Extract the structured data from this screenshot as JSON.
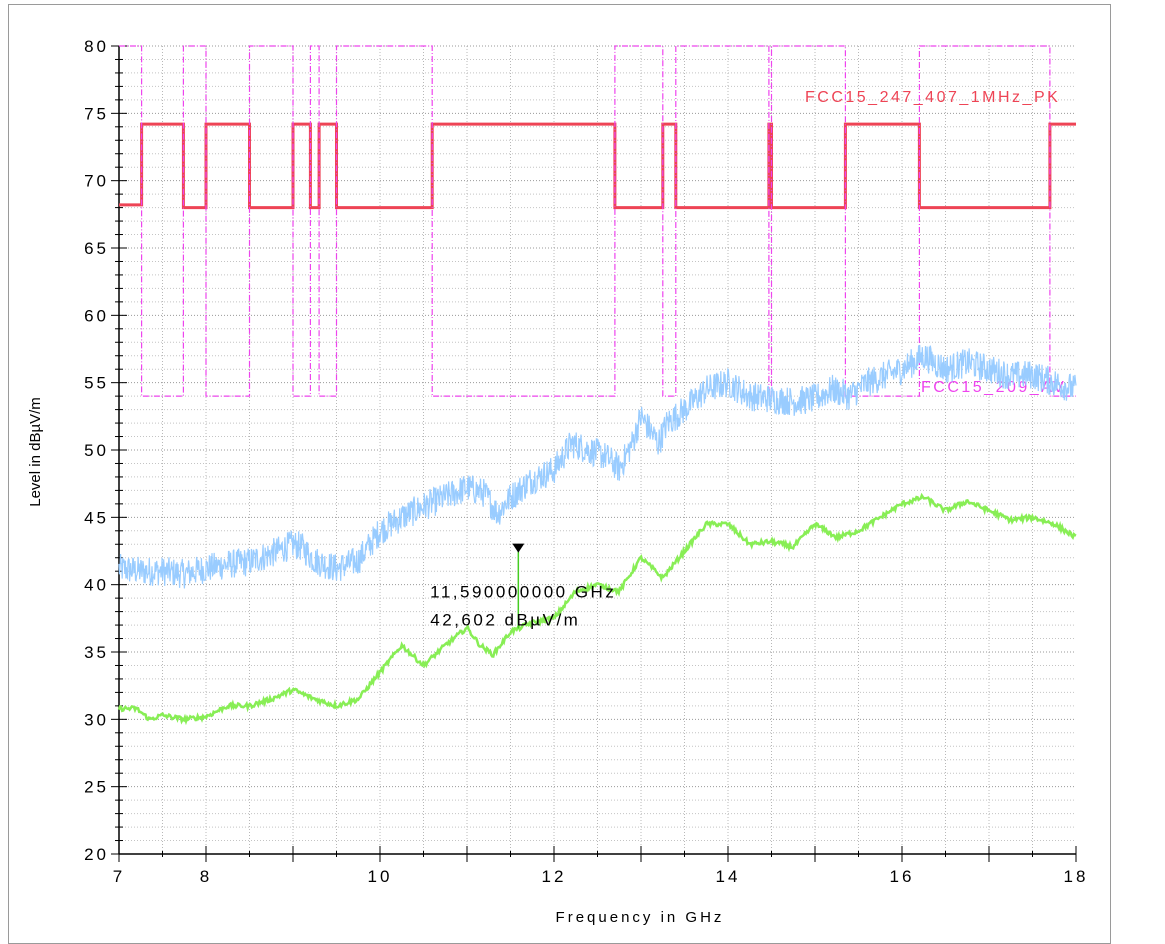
{
  "chart_data": {
    "type": "line",
    "xlabel": "Frequency in GHz",
    "ylabel": "Level in dBµV/m",
    "xlim": [
      7,
      18
    ],
    "ylim": [
      20,
      80
    ],
    "x_ticks": [
      7,
      8,
      10,
      12,
      14,
      16,
      18
    ],
    "x_tick_labels": [
      "7",
      "8",
      "10",
      "12",
      "14",
      "16",
      "18"
    ],
    "y_ticks": [
      20,
      25,
      30,
      35,
      40,
      45,
      50,
      55,
      60,
      65,
      70,
      75,
      80
    ],
    "y_tick_labels": [
      "20",
      "25",
      "30",
      "35",
      "40",
      "45",
      "50",
      "55",
      "60",
      "65",
      "70",
      "75",
      "80"
    ],
    "grid": true,
    "x_minor_step": 0.5,
    "y_minor_step": 1,
    "limit_lines": [
      {
        "name": "FCC15_247_407_1MHz_PK",
        "color": "#ee4455",
        "style": "solid",
        "x": [
          7.0,
          7.26,
          7.26,
          7.74,
          7.74,
          8.0,
          8.0,
          8.5,
          8.5,
          9.0,
          9.0,
          9.2,
          9.2,
          9.3,
          9.3,
          9.5,
          9.5,
          10.6,
          10.6,
          12.7,
          12.7,
          13.25,
          13.25,
          13.4,
          13.4,
          14.47,
          14.47,
          14.5,
          14.5,
          15.35,
          15.35,
          16.2,
          16.2,
          17.7,
          17.7,
          18.0
        ],
        "y": [
          68.2,
          68.2,
          74.2,
          74.2,
          68.0,
          68.0,
          74.2,
          74.2,
          68.0,
          68.0,
          74.2,
          74.2,
          68.0,
          68.0,
          74.2,
          74.2,
          68.0,
          68.0,
          74.2,
          74.2,
          68.0,
          68.0,
          74.2,
          74.2,
          68.0,
          68.0,
          74.2,
          74.2,
          68.0,
          68.0,
          74.2,
          74.2,
          68.0,
          68.0,
          74.2,
          74.2
        ]
      },
      {
        "name": "FCC15_209_AV",
        "color": "#ee44ee",
        "style": "dashdot",
        "x": [
          7.0,
          7.26,
          7.26,
          7.74,
          7.74,
          8.0,
          8.0,
          8.5,
          8.5,
          9.0,
          9.0,
          9.2,
          9.2,
          9.3,
          9.3,
          9.5,
          9.5,
          10.6,
          10.6,
          12.7,
          12.7,
          13.25,
          13.25,
          13.4,
          13.4,
          14.47,
          14.47,
          14.5,
          14.5,
          15.35,
          15.35,
          16.2,
          16.2,
          17.7,
          17.7,
          18.0
        ],
        "y": [
          80,
          80,
          54.0,
          54.0,
          80,
          80,
          54.0,
          54.0,
          80,
          80,
          54.0,
          54.0,
          80,
          80,
          54.0,
          54.0,
          80,
          80,
          54.0,
          54.0,
          80,
          80,
          54.0,
          54.0,
          80,
          80,
          54.0,
          54.0,
          80,
          80,
          54.0,
          54.0,
          80,
          80,
          54.0,
          54.0
        ]
      }
    ],
    "series": [
      {
        "color": "#99ccff",
        "style": "noisy",
        "x": [
          7.0,
          7.25,
          7.5,
          7.75,
          8.0,
          8.25,
          8.5,
          8.75,
          9.0,
          9.1,
          9.25,
          9.5,
          9.75,
          10.0,
          10.25,
          10.5,
          10.75,
          11.0,
          11.2,
          11.35,
          11.5,
          11.75,
          12.0,
          12.2,
          12.4,
          12.6,
          12.75,
          12.9,
          13.0,
          13.2,
          13.3,
          13.5,
          13.75,
          14.0,
          14.25,
          14.5,
          14.75,
          15.0,
          15.2,
          15.4,
          15.6,
          15.8,
          16.0,
          16.25,
          16.5,
          16.75,
          17.0,
          17.25,
          17.5,
          17.75,
          18.0
        ],
        "y": [
          41.2,
          41.0,
          41.0,
          40.8,
          41.2,
          41.5,
          41.7,
          42.3,
          43.0,
          42.8,
          41.8,
          41.2,
          41.8,
          44.0,
          45.0,
          45.8,
          46.5,
          47.2,
          46.8,
          45.3,
          46.5,
          47.8,
          48.5,
          50.5,
          50.0,
          49.5,
          48.6,
          50.5,
          52.5,
          50.5,
          52.0,
          53.0,
          54.5,
          55.0,
          54.0,
          53.8,
          53.6,
          53.8,
          54.5,
          54.0,
          55.0,
          55.5,
          56.0,
          57.0,
          56.0,
          56.5,
          56.0,
          55.5,
          55.6,
          55.0,
          54.5
        ],
        "noise": 1.1
      },
      {
        "color": "#88ee55",
        "style": "solid",
        "x": [
          7.0,
          7.2,
          7.35,
          7.5,
          7.75,
          8.0,
          8.25,
          8.5,
          8.75,
          9.0,
          9.25,
          9.5,
          9.75,
          10.0,
          10.25,
          10.5,
          10.75,
          11.0,
          11.15,
          11.3,
          11.5,
          11.75,
          12.0,
          12.25,
          12.5,
          12.75,
          13.0,
          13.25,
          13.5,
          13.75,
          14.0,
          14.25,
          14.5,
          14.75,
          15.0,
          15.25,
          15.5,
          15.75,
          16.0,
          16.25,
          16.5,
          16.75,
          17.0,
          17.25,
          17.5,
          17.75,
          18.0
        ],
        "y": [
          30.8,
          30.8,
          30.0,
          30.3,
          30.0,
          30.2,
          31.0,
          31.0,
          31.5,
          32.2,
          31.5,
          31.0,
          31.5,
          33.5,
          35.5,
          34.0,
          35.5,
          36.8,
          35.5,
          34.8,
          36.5,
          37.2,
          37.5,
          39.5,
          40.0,
          39.5,
          42.0,
          40.5,
          42.5,
          44.5,
          44.5,
          43.0,
          43.2,
          42.8,
          44.5,
          43.5,
          44.0,
          45.0,
          46.0,
          46.5,
          45.5,
          46.2,
          45.5,
          44.8,
          45.0,
          44.5,
          43.5
        ]
      }
    ],
    "marker": {
      "x": 11.59,
      "y": 42.602,
      "freq_label": "11,590000000 GHz",
      "level_label": "42,602 dBµV/m"
    }
  }
}
